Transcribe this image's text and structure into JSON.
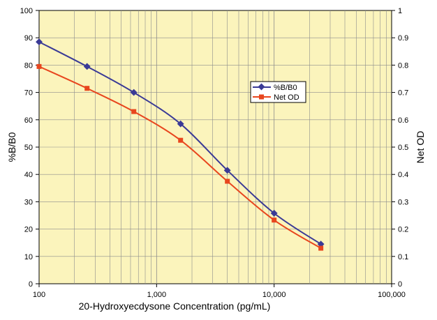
{
  "chart_data": {
    "type": "line",
    "title": "",
    "xlabel": "20-Hydroxyecdysone Concentration (pg/mL)",
    "ylabel": "%B/B0",
    "y2label": "Net OD",
    "x_scale": "log",
    "xlim": [
      100,
      100000
    ],
    "x_tick_labels": [
      "100",
      "1,000",
      "10,000",
      "100,000"
    ],
    "x_tick_values": [
      100,
      1000,
      10000,
      100000
    ],
    "ylim": [
      0,
      100
    ],
    "y_ticks": [
      "0",
      "10",
      "20",
      "30",
      "40",
      "50",
      "60",
      "70",
      "80",
      "90",
      "100"
    ],
    "y2lim": [
      0,
      1
    ],
    "y2_ticks": [
      "0",
      "0.1",
      "0.2",
      "0.3",
      "0.4",
      "0.5",
      "0.6",
      "0.7",
      "0.8",
      "0.9",
      "1"
    ],
    "grid": true,
    "legend_position": "center-right",
    "plot_background": "#FBF4BC",
    "series": [
      {
        "name": "%B/B0",
        "axis": "left",
        "marker": "diamond",
        "color": "#3A3A96",
        "x": [
          100,
          256,
          640,
          1600,
          4000,
          10000,
          25000
        ],
        "y": [
          88.5,
          79.5,
          70,
          58.5,
          41.5,
          25.8,
          14.5
        ]
      },
      {
        "name": "Net OD",
        "axis": "right",
        "marker": "square",
        "color": "#E8461E",
        "x": [
          100,
          256,
          640,
          1600,
          4000,
          10000,
          25000
        ],
        "y": [
          0.795,
          0.715,
          0.63,
          0.525,
          0.375,
          0.233,
          0.13
        ]
      }
    ]
  }
}
